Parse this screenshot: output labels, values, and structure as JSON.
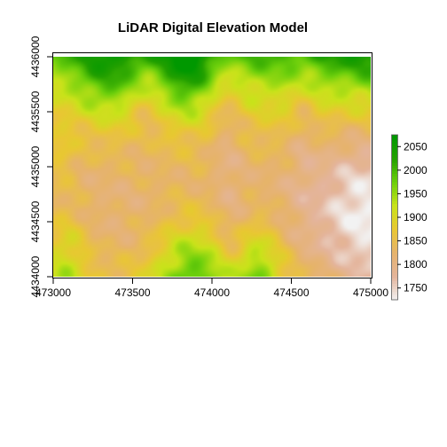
{
  "chart_data": {
    "type": "heatmap",
    "title": "LiDAR Digital Elevation Model",
    "xlabel": "",
    "ylabel": "",
    "xlim": [
      473000,
      475000
    ],
    "ylim": [
      4434000,
      4436000
    ],
    "x_ticks": [
      473000,
      473500,
      474000,
      474500,
      475000
    ],
    "y_ticks": [
      4434000,
      4434500,
      4435000,
      4435500,
      4436000
    ],
    "x_tick_labels": [
      "473000",
      "473500",
      "474000",
      "474500",
      "475000"
    ],
    "y_tick_labels": [
      "4434000",
      "4434500",
      "4435000",
      "4435500",
      "4436000"
    ],
    "value_range": [
      1725,
      2075
    ],
    "legend": {
      "placement": "right",
      "ticks": [
        1750,
        1800,
        1850,
        1900,
        1950,
        2000,
        2050
      ],
      "tick_labels": [
        "1750",
        "1800",
        "1850",
        "1900",
        "1950",
        "2000",
        "2050"
      ],
      "colors": [
        "#f2f2f2",
        "#e4b49b",
        "#e6b36d",
        "#e9c733",
        "#c9e31a",
        "#6ccf0c",
        "#22a000",
        "#009800"
      ]
    }
  }
}
